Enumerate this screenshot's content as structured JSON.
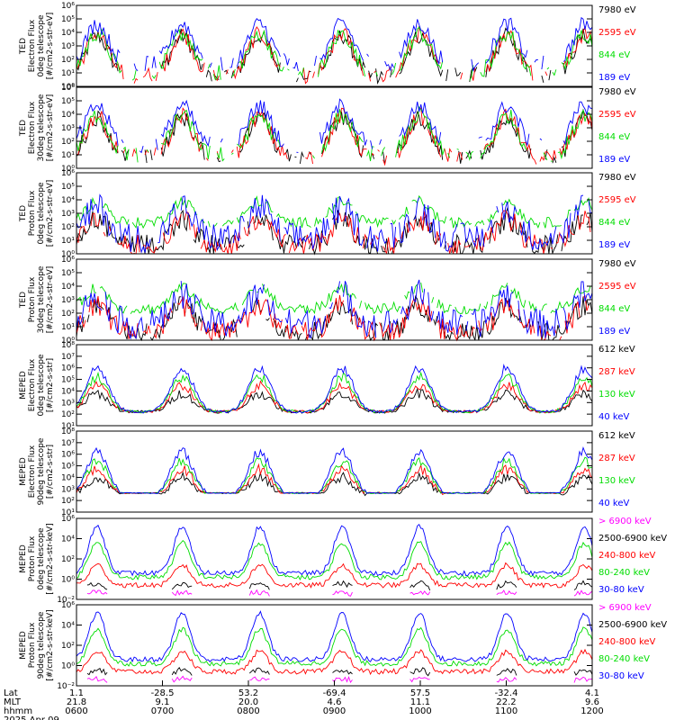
{
  "chart_data": {
    "type": "line",
    "date_label": "2025 Apr 09",
    "x_axis": {
      "row_labels": [
        "Lat",
        "MLT",
        "hhmm"
      ],
      "range": [
        "0600",
        "1200"
      ],
      "ticks": [
        {
          "lat": "1.1",
          "mlt": "21.8",
          "hhmm": "0600"
        },
        {
          "lat": "-28.5",
          "mlt": "9.1",
          "hhmm": "0700"
        },
        {
          "lat": "53.2",
          "mlt": "20.0",
          "hhmm": "0800"
        },
        {
          "lat": "-69.4",
          "mlt": "4.6",
          "hhmm": "0900"
        },
        {
          "lat": "57.5",
          "mlt": "11.1",
          "hhmm": "1000"
        },
        {
          "lat": "-32.4",
          "mlt": "22.2",
          "hhmm": "1100"
        },
        {
          "lat": "4.1",
          "mlt": "9.6",
          "hhmm": "1200"
        }
      ]
    },
    "panels": [
      {
        "ylabel": [
          "TED",
          "Electron Flux",
          "0deg telescope",
          "[#/cm2-s-str-eV]"
        ],
        "ylim_exp": [
          0,
          6
        ],
        "tick_labels": [
          "10⁰",
          "10¹",
          "10²",
          "10³",
          "10⁴",
          "10⁵",
          "10⁶"
        ],
        "series": [
          {
            "name": "7980 eV",
            "color": "#000000"
          },
          {
            "name": "2595 eV",
            "color": "#ff0000"
          },
          {
            "name": "844 eV",
            "color": "#00dd00"
          },
          {
            "name": "189 eV",
            "color": "#0000ff"
          }
        ]
      },
      {
        "ylabel": [
          "TED",
          "Electron Flux",
          "30deg telescope",
          "[#/cm2-s-str-eV]"
        ],
        "ylim_exp": [
          0,
          6
        ],
        "tick_labels": [
          "10⁰",
          "10¹",
          "10²",
          "10³",
          "10⁴",
          "10⁵",
          "10⁶"
        ],
        "series": [
          {
            "name": "7980 eV",
            "color": "#000000"
          },
          {
            "name": "2595 eV",
            "color": "#ff0000"
          },
          {
            "name": "844 eV",
            "color": "#00dd00"
          },
          {
            "name": "189 eV",
            "color": "#0000ff"
          }
        ]
      },
      {
        "ylabel": [
          "TED",
          "Proton Flux",
          "0deg telescope",
          "[#/cm2-s-str-eV]"
        ],
        "ylim_exp": [
          0,
          6
        ],
        "tick_labels": [
          "10⁰",
          "10¹",
          "10²",
          "10³",
          "10⁴",
          "10⁵",
          "10⁶"
        ],
        "series": [
          {
            "name": "7980 eV",
            "color": "#000000"
          },
          {
            "name": "2595 eV",
            "color": "#ff0000"
          },
          {
            "name": "844 eV",
            "color": "#00dd00"
          },
          {
            "name": "189 eV",
            "color": "#0000ff"
          }
        ]
      },
      {
        "ylabel": [
          "TED",
          "Proton Flux",
          "30deg telescope",
          "[#/cm2-s-str-eV]"
        ],
        "ylim_exp": [
          0,
          6
        ],
        "tick_labels": [
          "10⁰",
          "10¹",
          "10²",
          "10³",
          "10⁴",
          "10⁵",
          "10⁶"
        ],
        "series": [
          {
            "name": "7980 eV",
            "color": "#000000"
          },
          {
            "name": "2595 eV",
            "color": "#ff0000"
          },
          {
            "name": "844 eV",
            "color": "#00dd00"
          },
          {
            "name": "189 eV",
            "color": "#0000ff"
          }
        ]
      },
      {
        "ylabel": [
          "MEPED",
          "Electron Flux",
          "0deg telescope",
          "[#/cm2-s-str]"
        ],
        "ylim_exp": [
          1,
          8
        ],
        "tick_labels": [
          "10¹",
          "10²",
          "10³",
          "10⁴",
          "10⁵",
          "10⁶",
          "10⁷",
          "10⁸"
        ],
        "series": [
          {
            "name": "612 keV",
            "color": "#000000"
          },
          {
            "name": "287 keV",
            "color": "#ff0000"
          },
          {
            "name": "130 keV",
            "color": "#00dd00"
          },
          {
            "name": "40 keV",
            "color": "#0000ff"
          }
        ]
      },
      {
        "ylabel": [
          "MEPED",
          "Electron Flux",
          "90deg telescope",
          "[#/cm2-s-str]"
        ],
        "ylim_exp": [
          1,
          8
        ],
        "tick_labels": [
          "10¹",
          "10²",
          "10³",
          "10⁴",
          "10⁵",
          "10⁶",
          "10⁷",
          "10⁸"
        ],
        "series": [
          {
            "name": "612 keV",
            "color": "#000000"
          },
          {
            "name": "287 keV",
            "color": "#ff0000"
          },
          {
            "name": "130 keV",
            "color": "#00dd00"
          },
          {
            "name": "40 keV",
            "color": "#0000ff"
          }
        ]
      },
      {
        "ylabel": [
          "MEPED",
          "Proton Flux",
          "0deg telescope",
          "[#/cm2-s-str-keV]"
        ],
        "ylim_exp": [
          -2,
          6
        ],
        "tick_labels": [
          "10⁻²",
          "10⁰",
          "10²",
          "10⁴",
          "10⁶"
        ],
        "series": [
          {
            "name": "> 6900 keV",
            "color": "#ff00ff"
          },
          {
            "name": "2500-6900 keV",
            "color": "#000000"
          },
          {
            "name": "240-800 keV",
            "color": "#ff0000"
          },
          {
            "name": "80-240 keV",
            "color": "#00dd00"
          },
          {
            "name": "30-80 keV",
            "color": "#0000ff"
          }
        ]
      },
      {
        "ylabel": [
          "MEPED",
          "Proton Flux",
          "90deg telescope",
          "[#/cm2-s-str-keV]"
        ],
        "ylim_exp": [
          -2,
          6
        ],
        "tick_labels": [
          "10⁻²",
          "10⁰",
          "10²",
          "10⁴",
          "10⁶"
        ],
        "series": [
          {
            "name": "> 6900 keV",
            "color": "#ff00ff"
          },
          {
            "name": "2500-6900 keV",
            "color": "#000000"
          },
          {
            "name": "240-800 keV",
            "color": "#ff0000"
          },
          {
            "name": "80-240 keV",
            "color": "#00dd00"
          },
          {
            "name": "30-80 keV",
            "color": "#0000ff"
          }
        ]
      }
    ]
  }
}
